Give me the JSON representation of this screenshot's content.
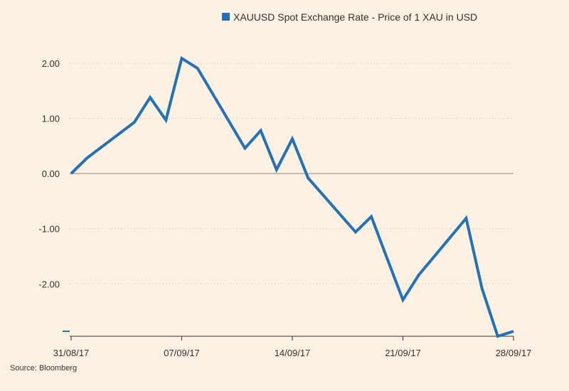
{
  "chart_data": {
    "type": "line",
    "title": "",
    "xlabel": "",
    "ylabel": "",
    "x_tick_labels": [
      "31/08/17",
      "07/09/17",
      "14/09/17",
      "21/09/17",
      "28/09/17"
    ],
    "y_tick_labels": [
      "2.00",
      "1.00",
      "0.00",
      "-1.00",
      "-2.00"
    ],
    "y_ticks": [
      2.0,
      1.0,
      0.0,
      -1.0,
      -2.0
    ],
    "ylim": [
      -2.95,
      2.4
    ],
    "xlim": [
      "2017-08-31",
      "2017-09-28"
    ],
    "grid": true,
    "legend_position": "top-right",
    "series": [
      {
        "name": "XAUUSD Spot Exchange Rate - Price of 1 XAU in USD",
        "color": "#2472b4",
        "points": [
          {
            "x": "2017-08-31",
            "y": 0.0
          },
          {
            "x": "2017-09-01",
            "y": 0.28
          },
          {
            "x": "2017-09-04",
            "y": 0.93
          },
          {
            "x": "2017-09-05",
            "y": 1.38
          },
          {
            "x": "2017-09-06",
            "y": 0.97
          },
          {
            "x": "2017-09-07",
            "y": 2.09
          },
          {
            "x": "2017-09-08",
            "y": 1.91
          },
          {
            "x": "2017-09-11",
            "y": 0.46
          },
          {
            "x": "2017-09-12",
            "y": 0.78
          },
          {
            "x": "2017-09-13",
            "y": 0.07
          },
          {
            "x": "2017-09-14",
            "y": 0.63
          },
          {
            "x": "2017-09-15",
            "y": -0.08
          },
          {
            "x": "2017-09-18",
            "y": -1.06
          },
          {
            "x": "2017-09-19",
            "y": -0.78
          },
          {
            "x": "2017-09-20",
            "y": -1.54
          },
          {
            "x": "2017-09-21",
            "y": -2.29
          },
          {
            "x": "2017-09-22",
            "y": -1.84
          },
          {
            "x": "2017-09-25",
            "y": -0.81
          },
          {
            "x": "2017-09-26",
            "y": -2.08
          },
          {
            "x": "2017-09-27",
            "y": -2.95
          },
          {
            "x": "2017-09-28",
            "y": -2.86
          }
        ]
      }
    ],
    "source": "Source: Bloomberg"
  },
  "colors": {
    "background": "#fdf1e3",
    "line": "#2472b4",
    "grid": "#d8cdc0",
    "zero_line": "#8c8680",
    "axis": "#33302e",
    "text": "#33302e"
  }
}
